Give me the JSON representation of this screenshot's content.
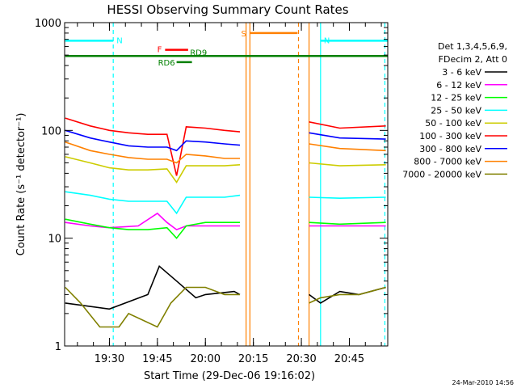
{
  "chart_data": {
    "type": "line",
    "title": "HESSI Observing Summary Count Rates",
    "xlabel": "Start Time (29-Dec-06 19:16:02)",
    "ylabel": "Count Rate (s⁻¹ detector⁻¹)",
    "y_scale": "log",
    "ylim": [
      1,
      1000
    ],
    "xlim": [
      19.2667,
      20.95
    ],
    "y_ticks": [
      {
        "value": 1,
        "label": "1"
      },
      {
        "value": 10,
        "label": "10"
      },
      {
        "value": 100,
        "label": "100"
      },
      {
        "value": 1000,
        "label": "1000"
      }
    ],
    "x_ticks": [
      {
        "value": 19.5,
        "label": "19:30"
      },
      {
        "value": 19.75,
        "label": "19:45"
      },
      {
        "value": 20.0,
        "label": "20:00"
      },
      {
        "value": 20.25,
        "label": "20:15"
      },
      {
        "value": 20.5,
        "label": "20:30"
      },
      {
        "value": 20.75,
        "label": "20:45"
      }
    ],
    "legend_header": [
      "Det 1,3,4,5,6,9,",
      "FDecim 2, Att 0"
    ],
    "series": [
      {
        "name": "3 - 6 keV",
        "color": "#000000",
        "segments": [
          {
            "x": [
              19.27,
              19.5,
              19.7,
              19.76,
              19.85,
              19.95,
              20.0,
              20.15,
              20.18
            ],
            "y": [
              2.5,
              2.2,
              3.0,
              5.5,
              4.0,
              2.8,
              3.0,
              3.2,
              3.0
            ]
          },
          {
            "x": [
              20.54,
              20.6,
              20.7,
              20.8,
              20.94
            ],
            "y": [
              3.0,
              2.5,
              3.2,
              3.0,
              3.5
            ]
          }
        ]
      },
      {
        "name": "6 - 12 keV",
        "color": "#ff00ff",
        "segments": [
          {
            "x": [
              19.27,
              19.4,
              19.5,
              19.65,
              19.75,
              19.8,
              19.85,
              19.9,
              20.0,
              20.1,
              20.18
            ],
            "y": [
              14,
              13,
              12.5,
              13,
              17,
              14,
              12,
              13,
              13,
              13,
              13
            ]
          },
          {
            "x": [
              20.54,
              20.7,
              20.94
            ],
            "y": [
              13,
              13,
              13
            ]
          }
        ]
      },
      {
        "name": "12 - 25 keV",
        "color": "#00ff00",
        "segments": [
          {
            "x": [
              19.27,
              19.4,
              19.5,
              19.6,
              19.7,
              19.8,
              19.85,
              19.9,
              20.0,
              20.1,
              20.18
            ],
            "y": [
              15,
              13.5,
              12.5,
              12,
              12,
              12.5,
              10,
              13,
              14,
              14,
              14
            ]
          },
          {
            "x": [
              20.54,
              20.7,
              20.94
            ],
            "y": [
              14,
              13.5,
              14
            ]
          }
        ]
      },
      {
        "name": "25 - 50 keV",
        "color": "#00ffff",
        "segments": [
          {
            "x": [
              19.27,
              19.4,
              19.5,
              19.6,
              19.7,
              19.8,
              19.85,
              19.9,
              20.0,
              20.1,
              20.18
            ],
            "y": [
              27,
              25,
              23,
              22,
              22,
              22,
              17,
              24,
              24,
              24,
              25
            ]
          },
          {
            "x": [
              20.54,
              20.7,
              20.94
            ],
            "y": [
              24,
              23.5,
              24
            ]
          }
        ]
      },
      {
        "name": "50 - 100 keV",
        "color": "#cccc00",
        "segments": [
          {
            "x": [
              19.27,
              19.4,
              19.5,
              19.6,
              19.7,
              19.8,
              19.85,
              19.9,
              20.0,
              20.1,
              20.18
            ],
            "y": [
              57,
              50,
              45,
              43,
              43,
              44,
              33,
              47,
              47,
              47,
              48
            ]
          },
          {
            "x": [
              20.54,
              20.7,
              20.94
            ],
            "y": [
              50,
              47,
              48
            ]
          }
        ]
      },
      {
        "name": "100 - 300 keV",
        "color": "#ff0000",
        "segments": [
          {
            "x": [
              19.27,
              19.4,
              19.5,
              19.6,
              19.7,
              19.8,
              19.85,
              19.9,
              20.0,
              20.1,
              20.18
            ],
            "y": [
              130,
              110,
              100,
              95,
              92,
              92,
              38,
              108,
              105,
              100,
              97
            ]
          },
          {
            "x": [
              20.54,
              20.7,
              20.94
            ],
            "y": [
              120,
              105,
              110
            ]
          }
        ]
      },
      {
        "name": "300 - 800 keV",
        "color": "#0000ff",
        "segments": [
          {
            "x": [
              19.27,
              19.4,
              19.5,
              19.6,
              19.7,
              19.8,
              19.85,
              19.9,
              20.0,
              20.1,
              20.18
            ],
            "y": [
              100,
              85,
              78,
              72,
              70,
              70,
              65,
              80,
              78,
              75,
              73
            ]
          },
          {
            "x": [
              20.54,
              20.7,
              20.94
            ],
            "y": [
              95,
              85,
              83
            ]
          }
        ]
      },
      {
        "name": "800 - 7000 keV",
        "color": "#ff8000",
        "segments": [
          {
            "x": [
              19.27,
              19.4,
              19.5,
              19.6,
              19.7,
              19.8,
              19.85,
              19.9,
              20.0,
              20.1,
              20.18
            ],
            "y": [
              78,
              65,
              60,
              56,
              54,
              54,
              50,
              60,
              58,
              55,
              55
            ]
          },
          {
            "x": [
              20.54,
              20.7,
              20.94
            ],
            "y": [
              75,
              68,
              65
            ]
          }
        ]
      },
      {
        "name": "7000 - 20000 keV",
        "color": "#808000",
        "segments": [
          {
            "x": [
              19.27,
              19.35,
              19.45,
              19.55,
              19.6,
              19.75,
              19.82,
              19.9,
              20.0,
              20.1,
              20.18
            ],
            "y": [
              3.5,
              2.5,
              1.5,
              1.5,
              2.0,
              1.5,
              2.5,
              3.5,
              3.5,
              3.0,
              3.0
            ]
          },
          {
            "x": [
              20.54,
              20.6,
              20.7,
              20.8,
              20.94
            ],
            "y": [
              2.5,
              2.8,
              3.0,
              3.0,
              3.5
            ]
          }
        ]
      }
    ],
    "annotations": [
      {
        "label": "N",
        "color": "#00ffff",
        "x": [
          19.27,
          19.52
        ],
        "y": 680
      },
      {
        "label": "N",
        "color": "#00ffff",
        "x": [
          20.6,
          20.95
        ],
        "y": 680
      },
      {
        "label": "F",
        "color": "#ff0000",
        "x": [
          19.79,
          19.91
        ],
        "y": 560
      },
      {
        "label": "RD9",
        "color": "#008000",
        "x": [
          19.27,
          20.95
        ],
        "y": 490
      },
      {
        "label": "RD6",
        "color": "#008000",
        "x": [
          19.85,
          19.93
        ],
        "y": 430
      },
      {
        "label": "S",
        "color": "#ff8000",
        "x": [
          20.23,
          20.48
        ],
        "y": 800
      }
    ],
    "vertical_markers": [
      {
        "x": 19.52,
        "color": "#00ffff",
        "style": "dashed"
      },
      {
        "x": 20.6,
        "color": "#00ffff",
        "style": "solid"
      },
      {
        "x": 20.935,
        "color": "#00ffff",
        "style": "dashed"
      },
      {
        "x": 20.212,
        "color": "#ff8000",
        "style": "solid"
      },
      {
        "x": 20.232,
        "color": "#ff8000",
        "style": "solid"
      },
      {
        "x": 20.485,
        "color": "#ff8000",
        "style": "dashed"
      },
      {
        "x": 20.54,
        "color": "#ff8000",
        "style": "solid"
      }
    ],
    "grid": false,
    "legend_position": "right"
  },
  "footer": {
    "timestamp": "24-Mar-2010 14:56"
  }
}
